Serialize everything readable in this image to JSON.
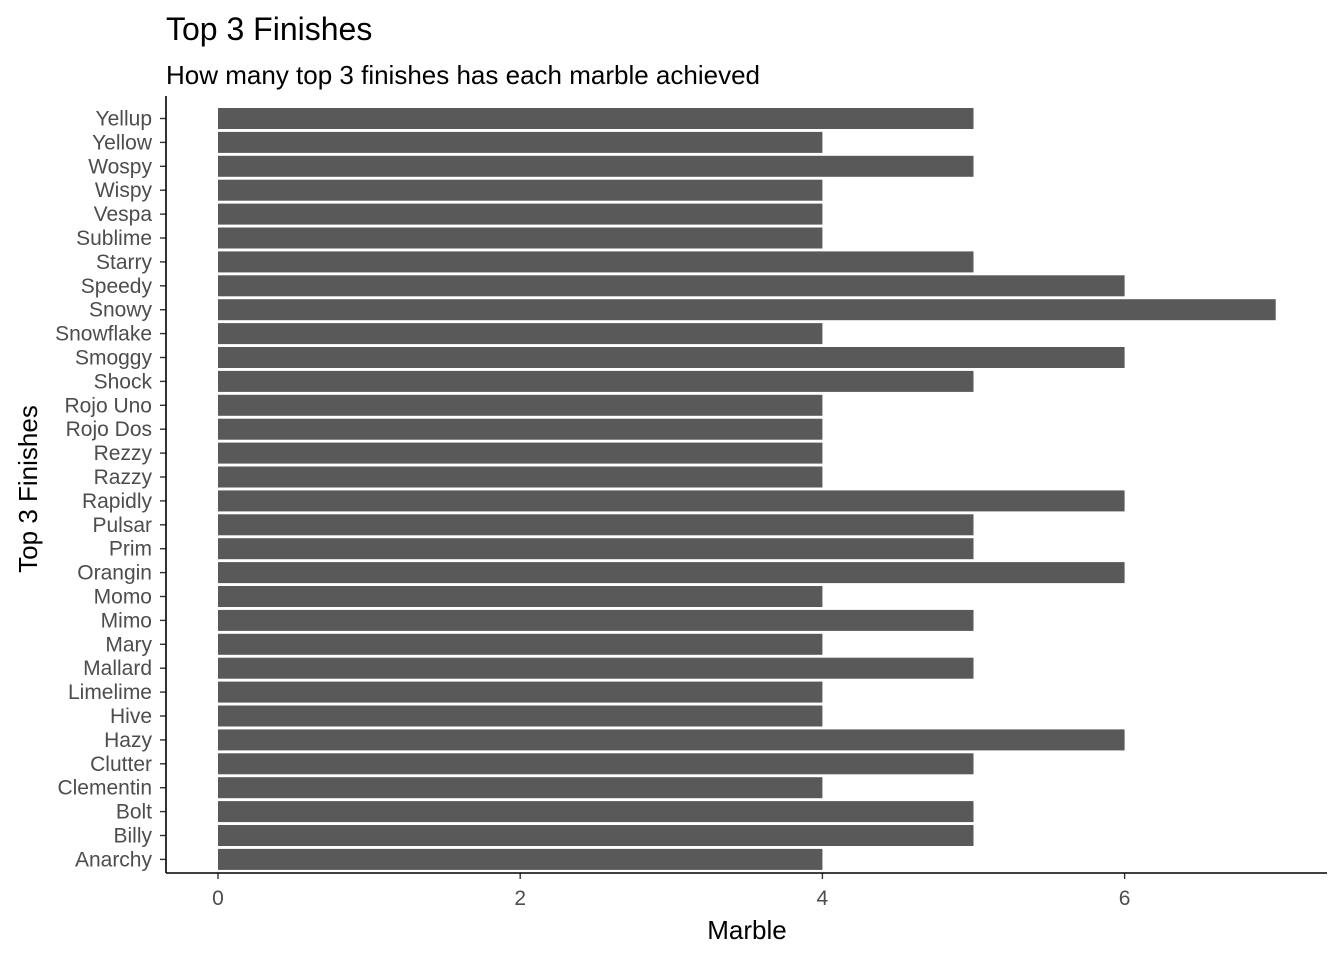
{
  "chart_data": {
    "type": "bar",
    "orientation": "horizontal",
    "title": "Top 3 Finishes",
    "subtitle": "How many top 3 finishes has each marble achieved",
    "xlabel": "Marble",
    "ylabel": "Top 3 Finishes",
    "bar_color": "#595959",
    "xlim": [
      0,
      7
    ],
    "xticks": [
      0,
      2,
      4,
      6
    ],
    "xtick_labels": [
      "0",
      "2",
      "4",
      "6"
    ],
    "grid": false,
    "legend": "none",
    "categories": [
      "Anarchy",
      "Billy",
      "Bolt",
      "Clementin",
      "Clutter",
      "Hazy",
      "Hive",
      "Limelime",
      "Mallard",
      "Mary",
      "Mimo",
      "Momo",
      "Orangin",
      "Prim",
      "Pulsar",
      "Rapidly",
      "Razzy",
      "Rezzy",
      "Rojo Dos",
      "Rojo Uno",
      "Shock",
      "Smoggy",
      "Snowflake",
      "Snowy",
      "Speedy",
      "Starry",
      "Sublime",
      "Vespa",
      "Wispy",
      "Wospy",
      "Yellow",
      "Yellup"
    ],
    "values": [
      4,
      5,
      5,
      4,
      5,
      6,
      4,
      4,
      5,
      4,
      5,
      4,
      6,
      5,
      5,
      6,
      4,
      4,
      4,
      4,
      5,
      6,
      4,
      7,
      6,
      5,
      4,
      4,
      4,
      5,
      4,
      5
    ]
  }
}
